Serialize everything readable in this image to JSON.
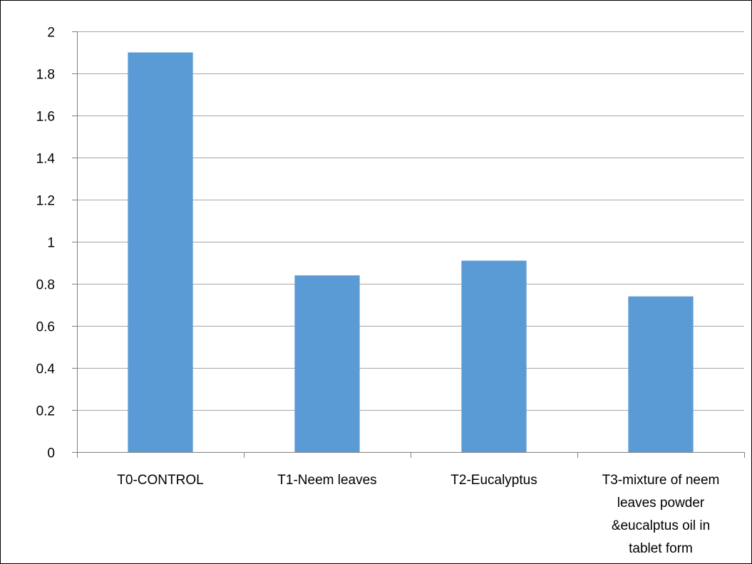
{
  "chart_data": {
    "type": "bar",
    "title": "",
    "xlabel": "",
    "ylabel": "",
    "categories": [
      "T0-CONTROL",
      "T1-Neem leaves",
      "T2-Eucalyptus",
      "T3-mixture of neem leaves powder &eucalptus oil in tablet form"
    ],
    "category_label_lines": [
      [
        "T0-CONTROL"
      ],
      [
        "T1-Neem leaves"
      ],
      [
        "T2-Eucalyptus"
      ],
      [
        "T3-mixture of neem",
        "leaves powder",
        "&eucalptus oil in",
        "tablet form"
      ]
    ],
    "values": [
      1.9,
      0.84,
      0.91,
      0.74
    ],
    "ylim": [
      0,
      2
    ],
    "yticks": [
      "0",
      "0.2",
      "0.4",
      "0.6",
      "0.8",
      "1",
      "1.2",
      "1.4",
      "1.6",
      "1.8",
      "2"
    ],
    "grid": true,
    "legend": "none",
    "bar_color": "#5b9bd5"
  }
}
